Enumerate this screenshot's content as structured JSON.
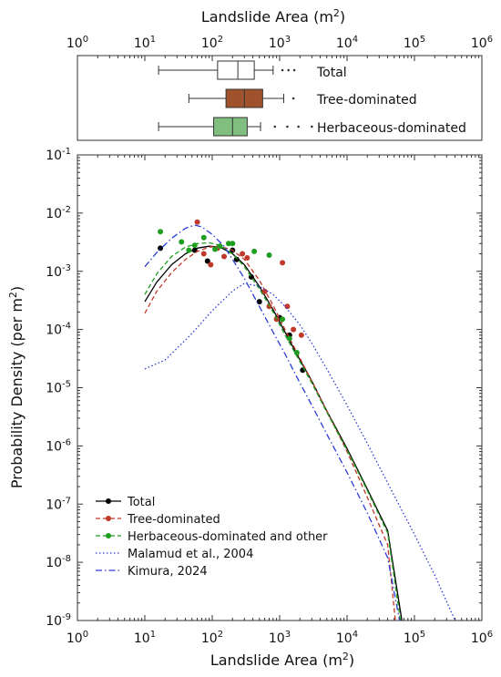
{
  "chart_data": [
    {
      "type": "boxplot",
      "x_axis": {
        "label": "Landslide Area",
        "unit_super": "2",
        "label_text": "Landslide Area (m2)",
        "scale": "log",
        "xlim": [
          1,
          1000000
        ],
        "ticks": [
          1,
          10,
          100,
          1000,
          10000,
          100000,
          1000000
        ],
        "tick_base": "10",
        "tick_exponents": [
          "0",
          "1",
          "2",
          "3",
          "4",
          "5",
          "6"
        ],
        "position": "top"
      },
      "boxes": [
        {
          "name": "Total",
          "whisker_low": 16,
          "q1": 120,
          "median": 240,
          "q3": 420,
          "whisker_high": 800,
          "outliers": [
            1100,
            1350,
            1650
          ],
          "fill": "#ffffff"
        },
        {
          "name": "Tree-dominated",
          "whisker_low": 45,
          "q1": 160,
          "median": 300,
          "q3": 560,
          "whisker_high": 1150,
          "outliers": [
            1600
          ],
          "fill": "#a0522d"
        },
        {
          "name": "Herbaceous-dominated",
          "whisker_low": 16,
          "q1": 105,
          "median": 200,
          "q3": 330,
          "whisker_high": 520,
          "outliers": [
            850,
            1300,
            1900,
            3000
          ],
          "fill": "#80bf80"
        }
      ]
    },
    {
      "type": "line",
      "x_axis": {
        "label": "Landslide Area",
        "unit_super": "2",
        "label_text": "Landslide Area (m2)",
        "scale": "log",
        "xlim": [
          1,
          1000000
        ],
        "ticks": [
          1,
          10,
          100,
          1000,
          10000,
          100000,
          1000000
        ],
        "tick_base": "10",
        "tick_exponents": [
          "0",
          "1",
          "2",
          "3",
          "4",
          "5",
          "6"
        ]
      },
      "y_axis": {
        "label": "Probability Density",
        "unit_pre": "(per m",
        "unit_super": "2",
        "unit_post": ")",
        "label_text": "Probability Density (per m2)",
        "scale": "log",
        "ylim": [
          1e-09,
          0.1
        ],
        "ticks": [
          1e-09,
          1e-08,
          1e-07,
          1e-06,
          1e-05,
          0.0001,
          0.001,
          0.01,
          0.1
        ],
        "tick_base": "10",
        "tick_exponents": [
          "-9",
          "-8",
          "-7",
          "-6",
          "-5",
          "-4",
          "-3",
          "-2",
          "-1"
        ]
      },
      "series": [
        {
          "name": "Total",
          "color": "#000000",
          "style": "solid",
          "marker": "dot",
          "curve": [
            [
              10,
              0.0003
            ],
            [
              15,
              0.00065
            ],
            [
              25,
              0.0013
            ],
            [
              40,
              0.002
            ],
            [
              60,
              0.0025
            ],
            [
              90,
              0.0027
            ],
            [
              130,
              0.0026
            ],
            [
              200,
              0.002
            ],
            [
              300,
              0.0013
            ],
            [
              500,
              0.00055
            ],
            [
              800,
              0.00022
            ],
            [
              1200,
              9e-05
            ],
            [
              2000,
              3e-05
            ],
            [
              3000,
              1.3e-05
            ],
            [
              5000,
              4e-06
            ],
            [
              10000,
              9e-07
            ],
            [
              20000,
              1.8e-07
            ],
            [
              40000,
              3.5e-08
            ],
            [
              65000,
              1e-09
            ]
          ],
          "points": [
            [
              17,
              0.0025
            ],
            [
              55,
              0.0023
            ],
            [
              85,
              0.0015
            ],
            [
              200,
              0.0023
            ],
            [
              230,
              0.0016
            ],
            [
              380,
              0.0008
            ],
            [
              500,
              0.0003
            ],
            [
              1000,
              0.00016
            ],
            [
              1400,
              8e-05
            ],
            [
              2200,
              2e-05
            ]
          ]
        },
        {
          "name": "Tree-dominated",
          "color": "#c0392b",
          "style": "dashed",
          "marker": "dot",
          "curve": [
            [
              10,
              0.00019
            ],
            [
              15,
              0.00045
            ],
            [
              25,
              0.00095
            ],
            [
              40,
              0.0016
            ],
            [
              60,
              0.0022
            ],
            [
              90,
              0.0026
            ],
            [
              130,
              0.0027
            ],
            [
              200,
              0.0023
            ],
            [
              300,
              0.0016
            ],
            [
              500,
              0.0007
            ],
            [
              800,
              0.00026
            ],
            [
              1200,
              0.0001
            ],
            [
              2000,
              3.2e-05
            ],
            [
              3000,
              1.3e-05
            ],
            [
              5000,
              4e-06
            ],
            [
              10000,
              8e-07
            ],
            [
              20000,
              1.3e-07
            ],
            [
              40000,
              2e-08
            ],
            [
              52000,
              1e-09
            ]
          ],
          "points": [
            [
              60,
              0.007
            ],
            [
              75,
              0.002
            ],
            [
              95,
              0.0013
            ],
            [
              120,
              0.0025
            ],
            [
              150,
              0.0018
            ],
            [
              280,
              0.002
            ],
            [
              330,
              0.0017
            ],
            [
              600,
              0.00045
            ],
            [
              700,
              0.00025
            ],
            [
              900,
              0.00015
            ],
            [
              1100,
              0.0014
            ],
            [
              1300,
              0.00025
            ],
            [
              1600,
              0.0001
            ],
            [
              2100,
              8e-05
            ]
          ]
        },
        {
          "name": "Herbaceous-dominated and other",
          "color": "#1e9e1e",
          "style": "dashed",
          "marker": "dot",
          "curve": [
            [
              10,
              0.0004
            ],
            [
              15,
              0.0009
            ],
            [
              25,
              0.0018
            ],
            [
              40,
              0.0026
            ],
            [
              60,
              0.003
            ],
            [
              90,
              0.0031
            ],
            [
              130,
              0.0028
            ],
            [
              200,
              0.002
            ],
            [
              300,
              0.0012
            ],
            [
              500,
              0.0005
            ],
            [
              800,
              0.0002
            ],
            [
              1200,
              8e-05
            ],
            [
              2000,
              2.8e-05
            ],
            [
              3000,
              1.2e-05
            ],
            [
              5000,
              3.8e-06
            ],
            [
              10000,
              8.5e-07
            ],
            [
              20000,
              1.7e-07
            ],
            [
              40000,
              3.2e-08
            ],
            [
              62000,
              1e-09
            ]
          ],
          "points": [
            [
              17,
              0.0048
            ],
            [
              35,
              0.0032
            ],
            [
              45,
              0.0023
            ],
            [
              55,
              0.0028
            ],
            [
              75,
              0.0038
            ],
            [
              110,
              0.0024
            ],
            [
              130,
              0.0027
            ],
            [
              175,
              0.003
            ],
            [
              200,
              0.003
            ],
            [
              420,
              0.0022
            ],
            [
              700,
              0.0019
            ],
            [
              1100,
              0.00015
            ],
            [
              1400,
              7e-05
            ],
            [
              1800,
              4e-05
            ]
          ]
        },
        {
          "name": "Malamud et al., 2004",
          "color": "#2a3bd6",
          "style": "dotted",
          "marker": "none",
          "curve": [
            [
              10,
              2.1e-05
            ],
            [
              20,
              3e-05
            ],
            [
              50,
              8.5e-05
            ],
            [
              100,
              0.00021
            ],
            [
              200,
              0.00046
            ],
            [
              300,
              0.00062
            ],
            [
              500,
              0.00055
            ],
            [
              800,
              0.0004
            ],
            [
              1200,
              0.00025
            ],
            [
              2000,
              0.00012
            ],
            [
              3000,
              5.8e-05
            ],
            [
              5000,
              2.1e-05
            ],
            [
              10000,
              5e-06
            ],
            [
              20000,
              1.1e-06
            ],
            [
              50000,
              1.4e-07
            ],
            [
              100000,
              3e-08
            ],
            [
              200000,
              6e-09
            ],
            [
              400000,
              1e-09
            ]
          ]
        },
        {
          "name": "Kimura, 2024",
          "color": "#2a3bd6",
          "style": "dashdot",
          "marker": "none",
          "curve": [
            [
              10,
              0.0012
            ],
            [
              15,
              0.0021
            ],
            [
              25,
              0.0037
            ],
            [
              40,
              0.0055
            ],
            [
              55,
              0.0062
            ],
            [
              70,
              0.0058
            ],
            [
              100,
              0.0043
            ],
            [
              150,
              0.0027
            ],
            [
              200,
              0.0016
            ],
            [
              300,
              0.00075
            ],
            [
              500,
              0.00025
            ],
            [
              800,
              9e-05
            ],
            [
              1200,
              3.8e-05
            ],
            [
              2000,
              1.2e-05
            ],
            [
              3000,
              5e-06
            ],
            [
              5000,
              1.6e-06
            ],
            [
              10000,
              3.5e-07
            ],
            [
              20000,
              7e-08
            ],
            [
              40000,
              1.2e-08
            ],
            [
              60000,
              1e-09
            ]
          ]
        }
      ],
      "legend": {
        "position": "bottom-left"
      },
      "grid": false
    }
  ]
}
